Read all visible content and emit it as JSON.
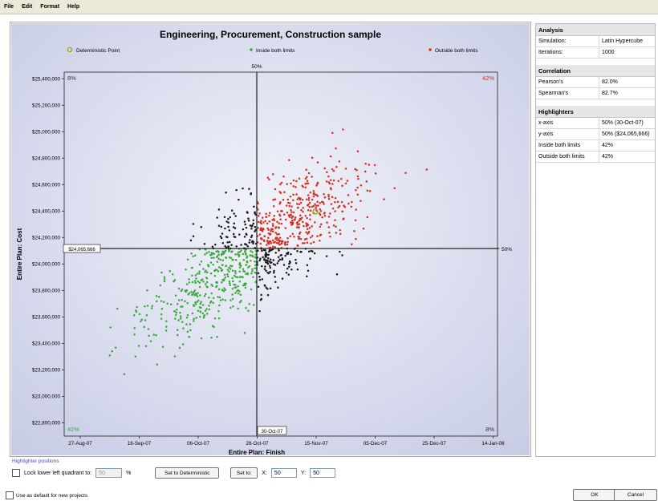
{
  "menu": [
    "File",
    "Edit",
    "Format",
    "Help"
  ],
  "chart_data": {
    "type": "scatter",
    "title": "Engineering, Procurement, Construction sample",
    "xlabel": "Entire Plan: Finish",
    "ylabel": "Entire Plan: Cost",
    "x_ticks": [
      "27-Aug-07",
      "16-Sep-07",
      "06-Oct-07",
      "26-Oct-07",
      "15-Nov-07",
      "05-Dec-07",
      "25-Dec-07",
      "14-Jan-08"
    ],
    "y_ticks": [
      "$25,400,000",
      "$25,200,000",
      "$25,000,000",
      "$24,800,000",
      "$24,600,000",
      "$24,400,000",
      "$24,200,000",
      "$24,000,000",
      "$23,800,000",
      "$23,600,000",
      "$23,400,000",
      "$23,200,000",
      "$23,000,000",
      "$22,800,000"
    ],
    "ylim": [
      22700000,
      25450000
    ],
    "legend": [
      {
        "name": "Deterministic Point",
        "color": "#9aa000",
        "marker": "circle"
      },
      {
        "name": "Inside both limits",
        "color": "#3aa83a",
        "marker": "dot"
      },
      {
        "name": "Outside both limits",
        "color": "#d42e1e",
        "marker": "dot"
      }
    ],
    "colors": {
      "inside": "#3aa83a",
      "outside": "#d42e1e",
      "other": "#1a1a1a",
      "plot_bg": "#d9dcee"
    },
    "highlighter_x_label": "30-Oct-07",
    "highlighter_y_label": "$24,065,666",
    "top_pct_label": "50%",
    "right_pct_label": "50%",
    "quadrants": {
      "top_left": "8%",
      "top_right": "42%",
      "bottom_left": "42%",
      "bottom_right": "8%"
    }
  },
  "analysis": {
    "title": "Analysis",
    "rows": [
      [
        "Simulation:",
        "Latin Hypercube"
      ],
      [
        "Iterations:",
        "1000"
      ]
    ]
  },
  "correlation": {
    "title": "Correlation",
    "rows": [
      [
        "Pearson's",
        "82.0%"
      ],
      [
        "Spearman's",
        "82.7%"
      ]
    ]
  },
  "highlighters": {
    "title": "Highlighters",
    "rows": [
      [
        "x-axis",
        "50% (30-Oct-07)"
      ],
      [
        "y-axis",
        "50% ($24,065,666)"
      ],
      [
        "Inside both limits",
        "42%"
      ],
      [
        "Outside both limits",
        "42%"
      ]
    ]
  },
  "highlighter_positions": {
    "title": "Highlighter positions",
    "lock_label": "Lock lower left quadrant to:",
    "lock_value": "50",
    "pct": "%",
    "set_deterministic": "Set to Deterministic",
    "set_to": "Set to:",
    "x_label": "X:",
    "x_value": "50",
    "y_label": "Y:",
    "y_value": "50"
  },
  "footer": {
    "default_label": "Use as default for new projects",
    "ok": "OK",
    "cancel": "Cancel"
  }
}
